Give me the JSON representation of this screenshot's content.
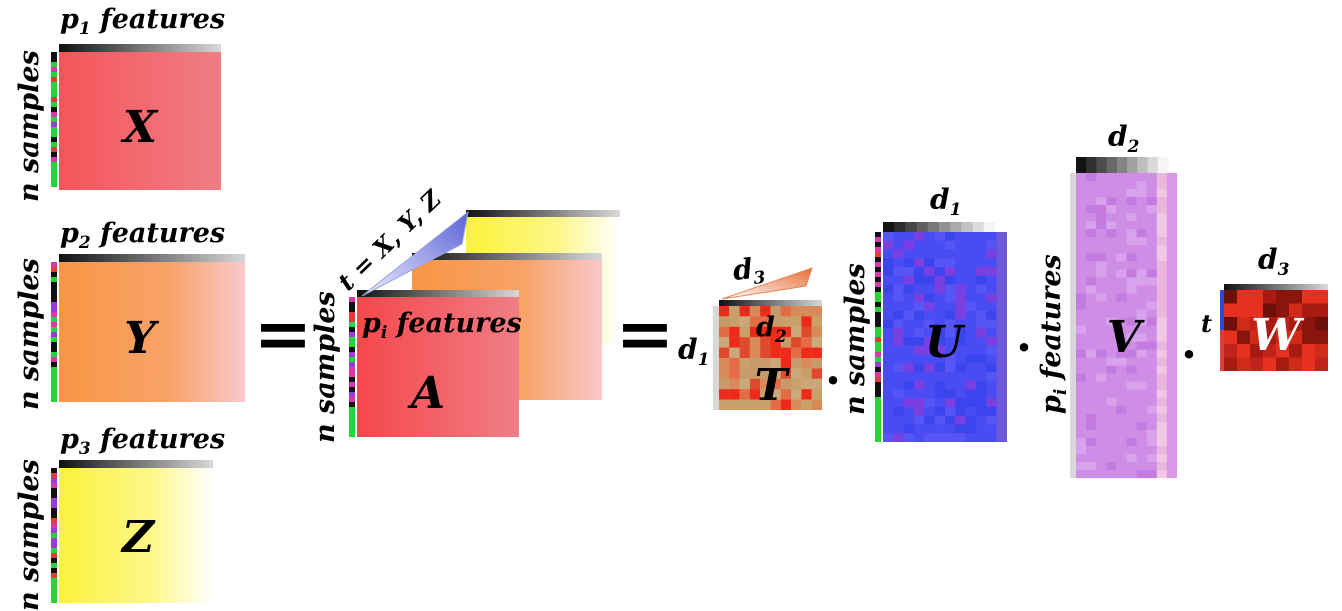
{
  "inputs": {
    "x": {
      "header": "p",
      "header_sub": "1",
      "header_rest": " features",
      "side": "n samples",
      "name": "X",
      "color": "#f5595c",
      "fade": "#f27f86"
    },
    "y": {
      "header": "p",
      "header_sub": "2",
      "header_rest": " features",
      "side": "n samples",
      "name": "Y",
      "color": "#f79a4a",
      "fade": "#f8c4c4"
    },
    "z": {
      "header": "p",
      "header_sub": "3",
      "header_rest": " features",
      "side": "n samples",
      "name": "Z",
      "color": "#fbf542",
      "fade": "#fffbe0"
    }
  },
  "equals": "=",
  "tensor": {
    "stack_label": "t = X, Y, Z",
    "side": "n samples",
    "header": "p",
    "header_sub": "i",
    "header_rest": " features",
    "name": "A"
  },
  "core": {
    "d3_label": "d",
    "d3_sub": "3",
    "d2_label": "d",
    "d2_sub": "2",
    "d1_label": "d",
    "d1_sub": "1",
    "name": "T",
    "color": "#c9a06a"
  },
  "dot": "·",
  "u_factor": {
    "top_label": "d",
    "top_sub": "1",
    "side": "n samples",
    "name": "U",
    "color": "#4a4cf3"
  },
  "v_factor": {
    "top_label": "d",
    "top_sub": "2",
    "side_prefix": "p",
    "side_sub": "i",
    "side_rest": " features",
    "name": "V",
    "color": "#cf8ee6"
  },
  "w_factor": {
    "top_label": "d",
    "top_sub": "3",
    "side": "t",
    "name": "W",
    "color": "#a81a12"
  },
  "sample_strip_colors": [
    "#111111",
    "#d33aa8",
    "#2ad23a",
    "#9a3ad8",
    "#e03c3c",
    "#111111",
    "#2ad23a",
    "#d33aa8",
    "#111111"
  ]
}
